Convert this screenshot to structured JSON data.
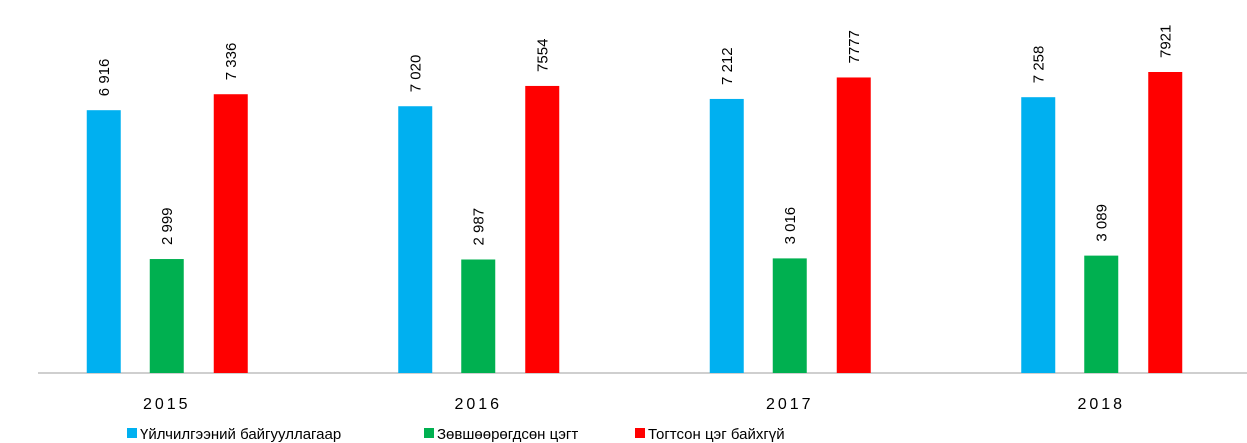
{
  "chart_data": {
    "type": "bar",
    "categories": [
      "2015",
      "2016",
      "2017",
      "2018"
    ],
    "series": [
      {
        "name": "Үйлчилгээний байгууллагаар",
        "color": "#00b0f0",
        "values": [
          6916,
          7020,
          7212,
          7258
        ],
        "value_labels": [
          "6 916",
          "7 020",
          "7 212",
          "7 258"
        ]
      },
      {
        "name": "Зөвшөөрөгдсөн цэгт",
        "color": "#00b050",
        "values": [
          2999,
          2987,
          3016,
          3089
        ],
        "value_labels": [
          "2 999",
          "2 987",
          "3 016",
          "3 089"
        ]
      },
      {
        "name": "Тогтсон цэг байхгүй",
        "color": "#ff0000",
        "values": [
          7336,
          7554,
          7777,
          7921
        ],
        "value_labels": [
          "7 336",
          "7554",
          "7777",
          "7921"
        ]
      }
    ]
  }
}
